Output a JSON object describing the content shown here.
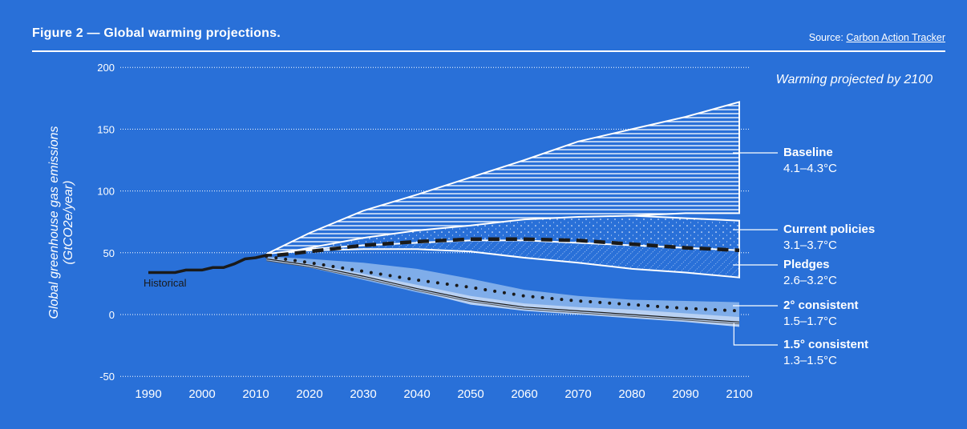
{
  "header": {
    "title": "Figure 2 — Global warming projections.",
    "source_label": "Source:",
    "source_link": "Carbon Action Tracker"
  },
  "colors": {
    "background": "#2970d8",
    "band_2c": "#7fadea",
    "band_15c": "#b9d1f3",
    "historical": "#1a1a1a",
    "white": "#ffffff"
  },
  "chart_data": {
    "type": "area",
    "title": "",
    "annotation": "Warming projected by 2100",
    "ylabel": "Global greenhouse gas emissions (GtCO2e/year)",
    "xlabel": "",
    "xlim": [
      1990,
      2100
    ],
    "ylim": [
      -50,
      200
    ],
    "xticks": [
      1990,
      2000,
      2010,
      2020,
      2030,
      2040,
      2050,
      2060,
      2070,
      2080,
      2090,
      2100
    ],
    "yticks": [
      200,
      150,
      100,
      50,
      0,
      -50
    ],
    "grid": "horizontal dotted",
    "historical": {
      "name": "Historical",
      "x": [
        1990,
        1993,
        1995,
        1997,
        2000,
        2002,
        2004,
        2006,
        2008,
        2010,
        2012,
        2013
      ],
      "y": [
        34,
        34,
        34,
        36,
        36,
        38,
        38,
        41,
        45,
        46,
        48,
        48
      ]
    },
    "scenarios": [
      {
        "name": "Baseline",
        "range": "4.1–4.3°C",
        "pattern": "horizontal-lines",
        "x": [
          2012,
          2020,
          2030,
          2040,
          2050,
          2060,
          2070,
          2080,
          2090,
          2100
        ],
        "upper": [
          49,
          66,
          84,
          97,
          111,
          125,
          140,
          150,
          160,
          172
        ],
        "lower": [
          49,
          53,
          58,
          64,
          70,
          75,
          77,
          80,
          82,
          82
        ]
      },
      {
        "name": "Current policies",
        "range": "3.1–3.7°C",
        "pattern": "dots",
        "x": [
          2015,
          2020,
          2030,
          2040,
          2050,
          2060,
          2070,
          2080,
          2090,
          2100
        ],
        "upper": [
          50,
          54,
          62,
          68,
          72,
          77,
          79,
          80,
          78,
          76
        ],
        "lower": [
          50,
          52,
          55,
          56,
          56,
          55,
          54,
          52,
          50,
          48
        ]
      },
      {
        "name": "Pledges",
        "range": "2.6–3.2°C",
        "pattern": "diagonal-lines",
        "x": [
          2015,
          2020,
          2030,
          2040,
          2050,
          2060,
          2070,
          2080,
          2090,
          2095,
          2100
        ],
        "upper": [
          50,
          53,
          56,
          58,
          60,
          60,
          58,
          56,
          54,
          53,
          52
        ],
        "lower": [
          50,
          52,
          53,
          53,
          51,
          46,
          42,
          37,
          34,
          32,
          30
        ]
      },
      {
        "name": "2° consistent",
        "range": "1.5–1.7°C",
        "pattern": "solid",
        "x": [
          2012,
          2020,
          2030,
          2040,
          2050,
          2060,
          2070,
          2080,
          2090,
          2100
        ],
        "upper": [
          47,
          45,
          42,
          37,
          29,
          20,
          15,
          12,
          11,
          10
        ],
        "lower": [
          44,
          38,
          28,
          18,
          9,
          4,
          2,
          0,
          -2,
          -3
        ],
        "median": [
          47,
          42,
          35,
          28,
          22,
          15,
          11,
          8,
          5,
          3
        ]
      },
      {
        "name": "1.5° consistent",
        "range": "1.3–1.5°C",
        "pattern": "solid",
        "x": [
          2012,
          2020,
          2030,
          2040,
          2050,
          2060,
          2070,
          2080,
          2090,
          2100
        ],
        "upper": [
          46,
          41,
          33,
          24,
          15,
          9,
          6,
          4,
          1,
          -2
        ],
        "lower": [
          44,
          38,
          29,
          19,
          8,
          3,
          0,
          -3,
          -6,
          -10
        ],
        "median": [
          45,
          40,
          31,
          21,
          12,
          6,
          3,
          0,
          -3,
          -6
        ]
      }
    ],
    "current_policies_median": {
      "x": [
        2014,
        2020,
        2030,
        2040,
        2050,
        2060,
        2070,
        2080,
        2090,
        2100
      ],
      "y": [
        48,
        51,
        56,
        59,
        61,
        61,
        60,
        57,
        54,
        52
      ]
    }
  }
}
